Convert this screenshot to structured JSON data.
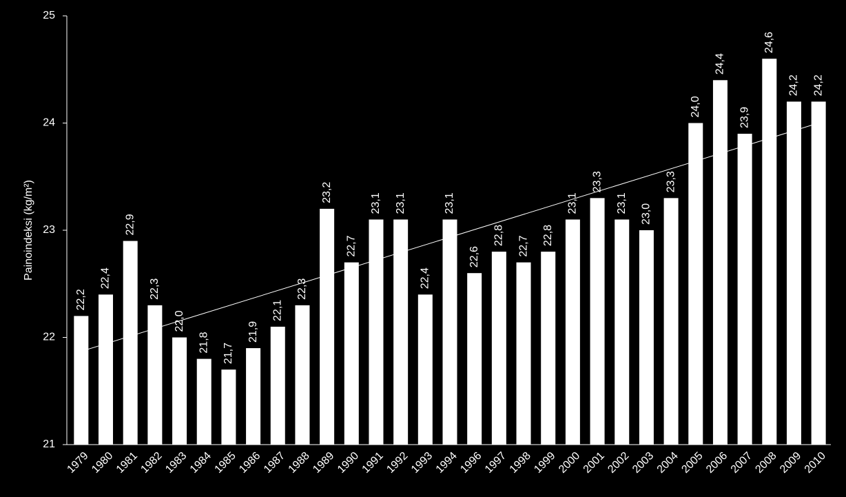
{
  "chart_data": {
    "type": "bar",
    "y_label": "Painoindeksi (kg/m²)",
    "categories": [
      "1979",
      "1980",
      "1981",
      "1982",
      "1983",
      "1984",
      "1985",
      "1986",
      "1987",
      "1988",
      "1989",
      "1990",
      "1991",
      "1992",
      "1993",
      "1994",
      "1996",
      "1997",
      "1998",
      "1999",
      "2000",
      "2001",
      "2002",
      "2003",
      "2004",
      "2005",
      "2006",
      "2007",
      "2008",
      "2009",
      "2010"
    ],
    "values": [
      22.2,
      22.4,
      22.9,
      22.3,
      22.0,
      21.8,
      21.7,
      21.9,
      22.1,
      22.3,
      23.2,
      22.7,
      23.1,
      23.1,
      22.4,
      23.1,
      22.6,
      22.8,
      22.7,
      22.8,
      23.1,
      23.3,
      23.1,
      23.0,
      23.3,
      24.0,
      24.4,
      23.9,
      24.6,
      24.2,
      24.2
    ],
    "value_labels": [
      "22,2",
      "22,4",
      "22,9",
      "22,3",
      "22,0",
      "21,8",
      "21,7",
      "21,9",
      "22,1",
      "22,3",
      "23,2",
      "22,7",
      "23,1",
      "23,1",
      "22,4",
      "23,1",
      "22,6",
      "22,8",
      "22,7",
      "22,8",
      "23,1",
      "23,3",
      "23,1",
      "23,0",
      "23,3",
      "24,0",
      "24,4",
      "23,9",
      "24,6",
      "24,2",
      "24,2"
    ],
    "color": "#ffffff",
    "trendline": [
      21.87,
      24.0
    ],
    "ylim": [
      21,
      25
    ],
    "yticks": [
      21,
      22,
      23,
      24,
      25
    ]
  }
}
